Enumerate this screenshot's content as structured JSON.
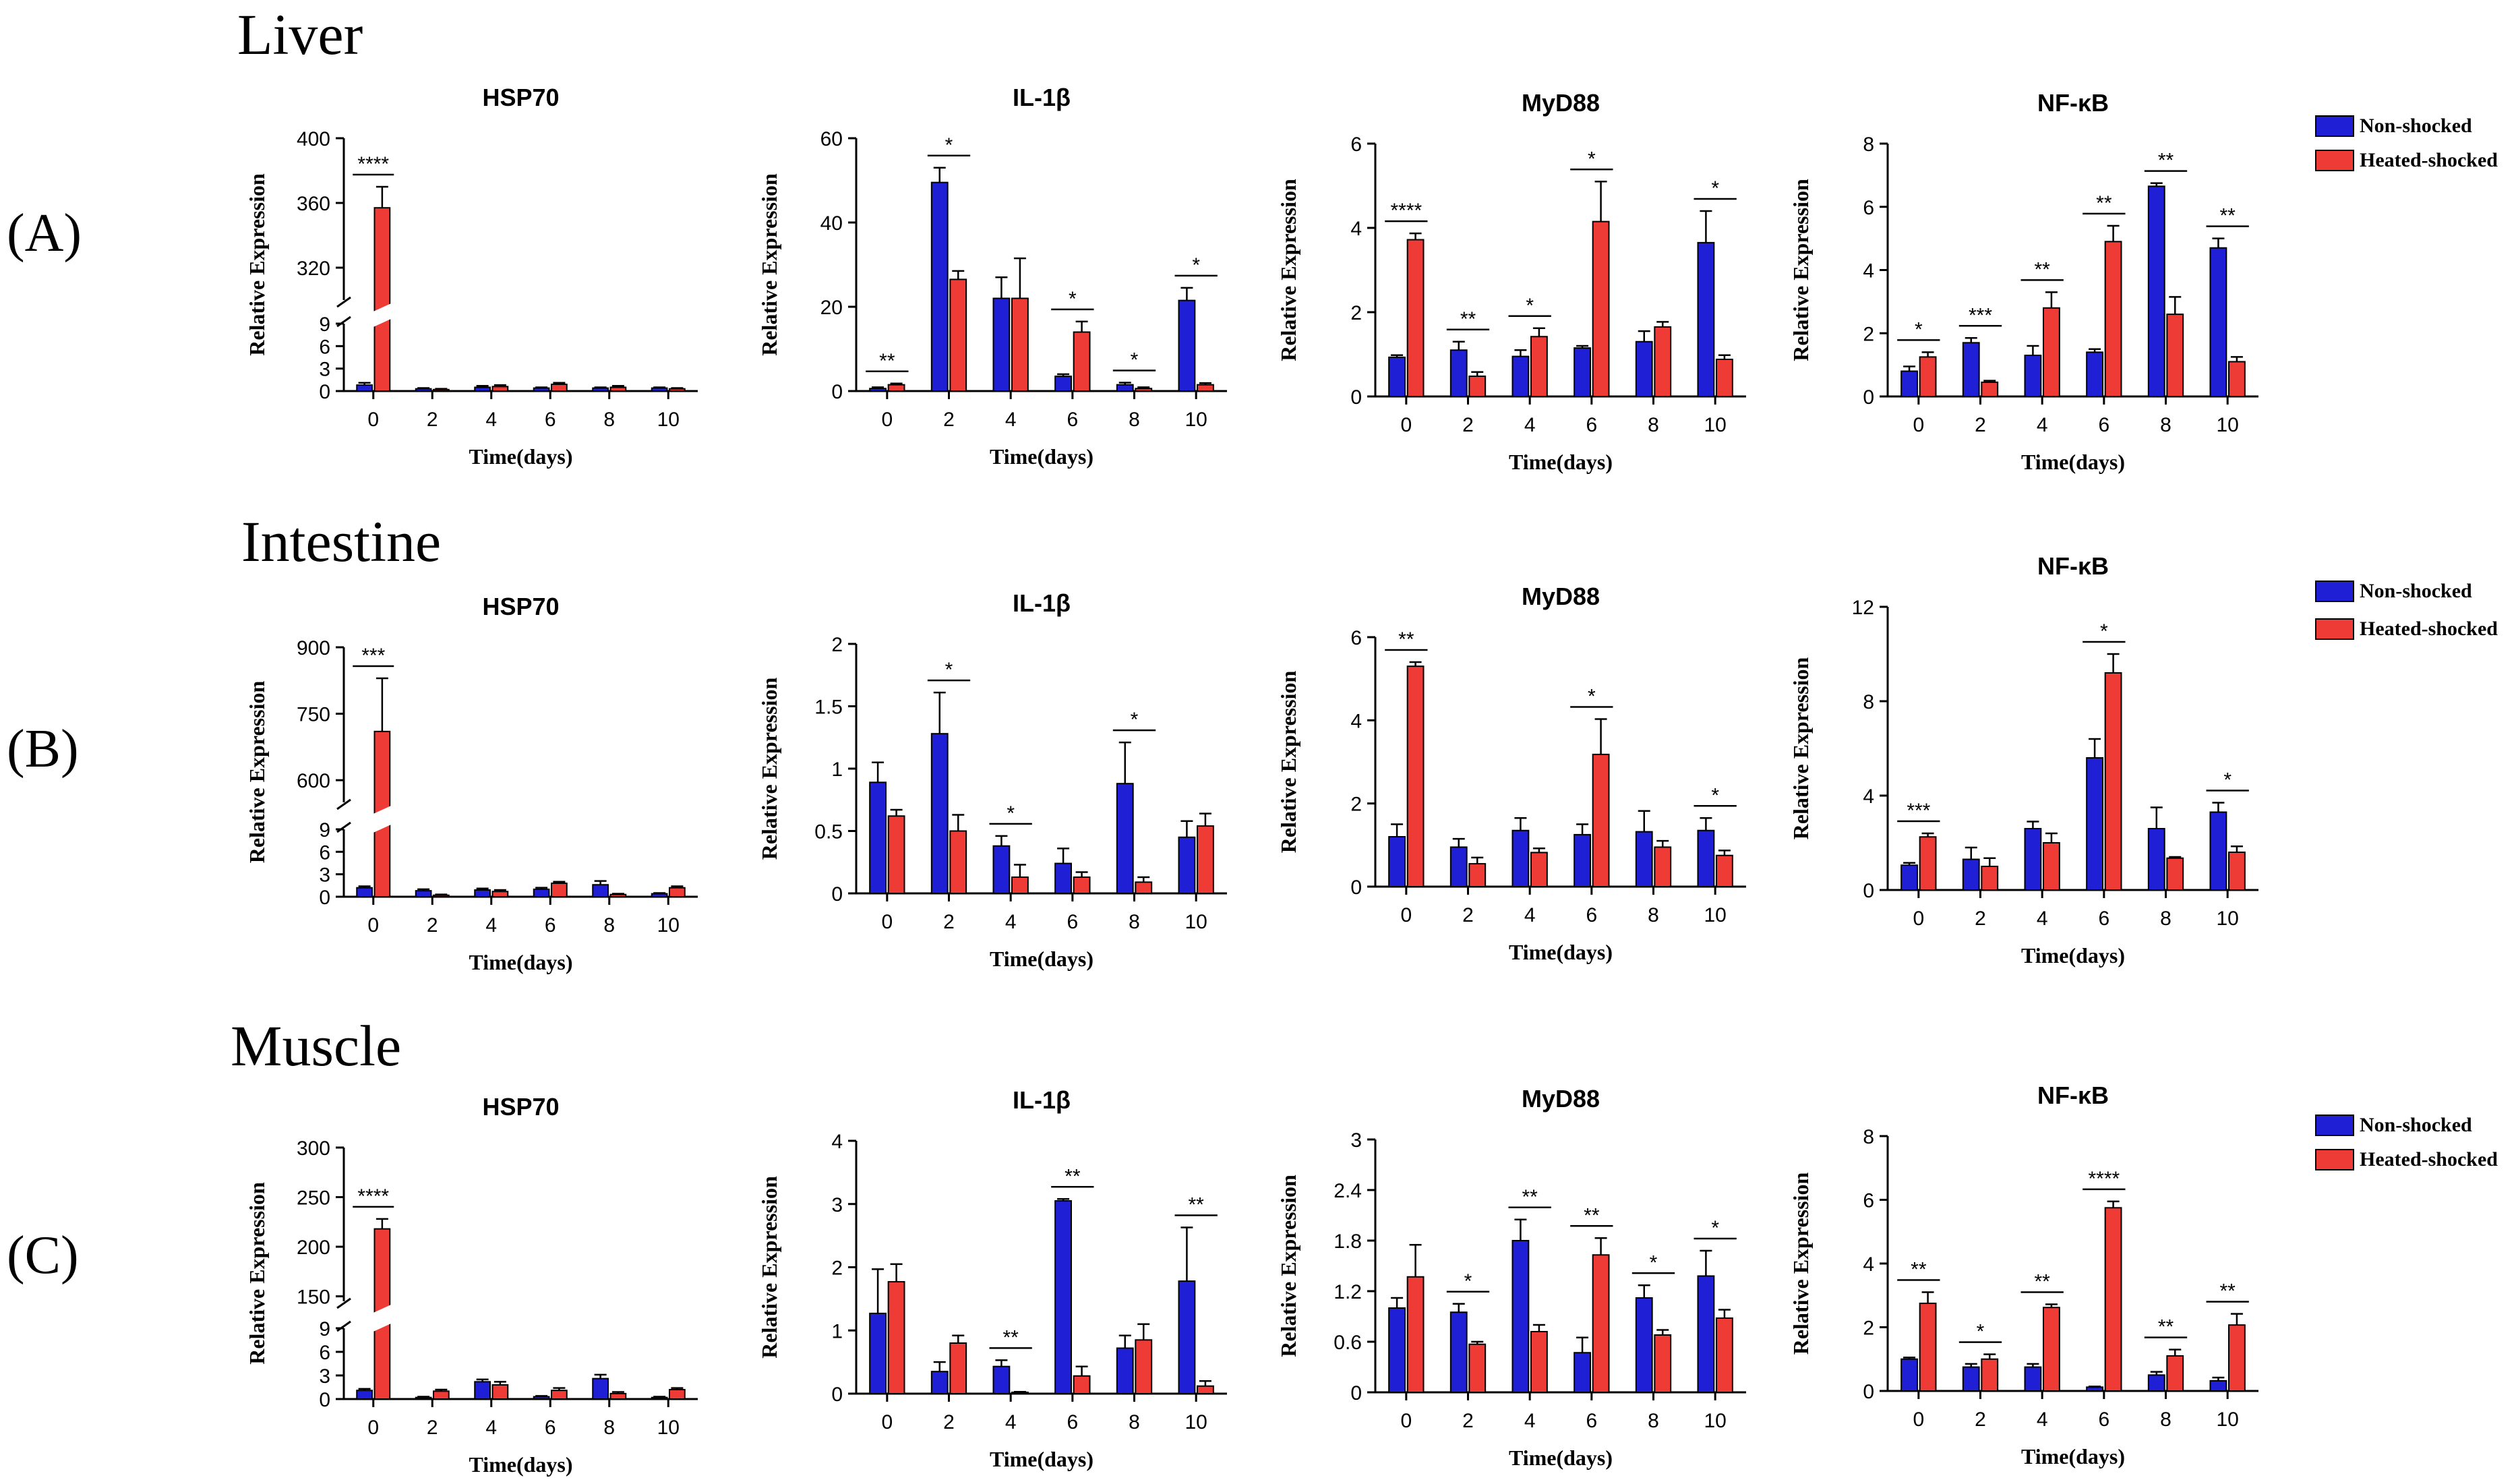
{
  "figure": {
    "xlabel": "Time(days)",
    "ylabel": "Relative Expression",
    "legend": {
      "non": "Non-shocked",
      "heat": "Heated-shocked"
    },
    "colors": {
      "non": "#1f1fd6",
      "heat": "#ef3b36",
      "axis": "#000000"
    }
  },
  "rows": [
    {
      "label": "(A)",
      "title": "Liver"
    },
    {
      "label": "(B)",
      "title": "Intestine"
    },
    {
      "label": "(C)",
      "title": "Muscle"
    }
  ],
  "chart_data": [
    {
      "type": "bar",
      "row": 0,
      "title": "HSP70",
      "categories": [
        "0",
        "2",
        "4",
        "6",
        "8",
        "10"
      ],
      "series": [
        {
          "name": "Non-shocked",
          "values": [
            0.8,
            0.3,
            0.5,
            0.4,
            0.4,
            0.4
          ],
          "errors": [
            0.3,
            0.1,
            0.2,
            0.1,
            0.1,
            0.1
          ]
        },
        {
          "name": "Heated-shocked",
          "values": [
            357,
            0.2,
            0.6,
            0.9,
            0.5,
            0.3
          ],
          "errors": [
            13,
            0.1,
            0.2,
            0.2,
            0.2,
            0.1
          ]
        }
      ],
      "ylim": [
        0,
        400
      ],
      "ybreak": {
        "low": [
          0,
          9
        ],
        "high": [
          300,
          400
        ]
      },
      "yticks_low": [
        0,
        3,
        6,
        9
      ],
      "yticks_high": [
        320,
        360,
        400
      ],
      "significance": [
        {
          "category": "0",
          "label": "****"
        }
      ]
    },
    {
      "type": "bar",
      "row": 0,
      "title": "IL-1β",
      "categories": [
        "0",
        "2",
        "4",
        "6",
        "8",
        "10"
      ],
      "series": [
        {
          "name": "Non-shocked",
          "values": [
            0.6,
            49.5,
            22,
            3.5,
            1.5,
            21.5
          ],
          "errors": [
            0.3,
            3.5,
            5,
            0.5,
            0.5,
            3
          ]
        },
        {
          "name": "Heated-shocked",
          "values": [
            1.5,
            26.5,
            22,
            14,
            0.6,
            1.5
          ],
          "errors": [
            0.3,
            2,
            9.5,
            2.5,
            0.3,
            0.4
          ]
        }
      ],
      "ylim": [
        0,
        60
      ],
      "yticks": [
        0,
        20,
        40,
        60
      ],
      "significance": [
        {
          "category": "0",
          "label": "**"
        },
        {
          "category": "2",
          "label": "*"
        },
        {
          "category": "6",
          "label": "*"
        },
        {
          "category": "8",
          "label": "*"
        },
        {
          "category": "10",
          "label": "*"
        }
      ]
    },
    {
      "type": "bar",
      "row": 0,
      "title": "MyD88",
      "categories": [
        "0",
        "2",
        "4",
        "6",
        "8",
        "10"
      ],
      "series": [
        {
          "name": "Non-shocked",
          "values": [
            0.93,
            1.1,
            0.95,
            1.15,
            1.3,
            3.65
          ],
          "errors": [
            0.05,
            0.2,
            0.15,
            0.05,
            0.25,
            0.75
          ]
        },
        {
          "name": "Heated-shocked",
          "values": [
            3.72,
            0.48,
            1.42,
            4.15,
            1.65,
            0.88
          ],
          "errors": [
            0.15,
            0.1,
            0.2,
            0.95,
            0.12,
            0.1
          ]
        }
      ],
      "ylim": [
        0,
        6
      ],
      "yticks": [
        0,
        2,
        4,
        6
      ],
      "significance": [
        {
          "category": "0",
          "label": "****"
        },
        {
          "category": "2",
          "label": "**"
        },
        {
          "category": "4",
          "label": "*"
        },
        {
          "category": "6",
          "label": "*"
        },
        {
          "category": "10",
          "label": "*"
        }
      ]
    },
    {
      "type": "bar",
      "row": 0,
      "title": "NF-κB",
      "categories": [
        "0",
        "2",
        "4",
        "6",
        "8",
        "10"
      ],
      "series": [
        {
          "name": "Non-shocked",
          "values": [
            0.8,
            1.7,
            1.3,
            1.4,
            6.65,
            4.7
          ],
          "errors": [
            0.15,
            0.15,
            0.3,
            0.1,
            0.1,
            0.3
          ]
        },
        {
          "name": "Heated-shocked",
          "values": [
            1.25,
            0.45,
            2.8,
            4.9,
            2.6,
            1.1
          ],
          "errors": [
            0.15,
            0.05,
            0.5,
            0.5,
            0.55,
            0.15
          ]
        }
      ],
      "ylim": [
        0,
        8
      ],
      "yticks": [
        0,
        2,
        4,
        6,
        8
      ],
      "significance": [
        {
          "category": "0",
          "label": "*"
        },
        {
          "category": "2",
          "label": "***"
        },
        {
          "category": "4",
          "label": "**"
        },
        {
          "category": "6",
          "label": "**"
        },
        {
          "category": "8",
          "label": "**"
        },
        {
          "category": "10",
          "label": "**"
        }
      ]
    },
    {
      "type": "bar",
      "row": 1,
      "title": "HSP70",
      "categories": [
        "0",
        "2",
        "4",
        "6",
        "8",
        "10"
      ],
      "series": [
        {
          "name": "Non-shocked",
          "values": [
            1.2,
            0.8,
            0.9,
            1.0,
            1.6,
            0.4
          ],
          "errors": [
            0.2,
            0.2,
            0.2,
            0.2,
            0.5,
            0.1
          ]
        },
        {
          "name": "Heated-shocked",
          "values": [
            710,
            0.2,
            0.7,
            1.8,
            0.3,
            1.2
          ],
          "errors": [
            120,
            0.1,
            0.2,
            0.2,
            0.1,
            0.2
          ]
        }
      ],
      "ylim": [
        0,
        900
      ],
      "ybreak": {
        "low": [
          0,
          9
        ],
        "high": [
          550,
          900
        ]
      },
      "yticks_low": [
        0,
        3,
        6,
        9
      ],
      "yticks_high": [
        600,
        750,
        900
      ],
      "significance": [
        {
          "category": "0",
          "label": "***"
        }
      ]
    },
    {
      "type": "bar",
      "row": 1,
      "title": "IL-1β",
      "categories": [
        "0",
        "2",
        "4",
        "6",
        "8",
        "10"
      ],
      "series": [
        {
          "name": "Non-shocked",
          "values": [
            0.89,
            1.28,
            0.38,
            0.24,
            0.88,
            0.45
          ],
          "errors": [
            0.16,
            0.33,
            0.08,
            0.12,
            0.33,
            0.13
          ]
        },
        {
          "name": "Heated-shocked",
          "values": [
            0.62,
            0.5,
            0.13,
            0.13,
            0.09,
            0.54
          ],
          "errors": [
            0.05,
            0.13,
            0.1,
            0.04,
            0.04,
            0.1
          ]
        }
      ],
      "ylim": [
        0,
        2
      ],
      "yticks": [
        0.0,
        0.5,
        1.0,
        1.5,
        2.0
      ],
      "significance": [
        {
          "category": "2",
          "label": "*"
        },
        {
          "category": "4",
          "label": "*"
        },
        {
          "category": "8",
          "label": "*"
        }
      ]
    },
    {
      "type": "bar",
      "row": 1,
      "title": "MyD88",
      "categories": [
        "0",
        "2",
        "4",
        "6",
        "8",
        "10"
      ],
      "series": [
        {
          "name": "Non-shocked",
          "values": [
            1.2,
            0.95,
            1.35,
            1.25,
            1.32,
            1.35
          ],
          "errors": [
            0.3,
            0.2,
            0.3,
            0.25,
            0.5,
            0.3
          ]
        },
        {
          "name": "Heated-shocked",
          "values": [
            5.3,
            0.55,
            0.82,
            3.18,
            0.95,
            0.75
          ],
          "errors": [
            0.1,
            0.15,
            0.1,
            0.85,
            0.15,
            0.12
          ]
        }
      ],
      "ylim": [
        0,
        6
      ],
      "yticks": [
        0,
        2,
        4,
        6
      ],
      "significance": [
        {
          "category": "0",
          "label": "**"
        },
        {
          "category": "6",
          "label": "*"
        },
        {
          "category": "10",
          "label": "*"
        }
      ]
    },
    {
      "type": "bar",
      "row": 1,
      "title": "NF-κB",
      "categories": [
        "0",
        "2",
        "4",
        "6",
        "8",
        "10"
      ],
      "series": [
        {
          "name": "Non-shocked",
          "values": [
            1.05,
            1.3,
            2.6,
            5.6,
            2.6,
            3.3
          ],
          "errors": [
            0.1,
            0.5,
            0.3,
            0.8,
            0.9,
            0.4
          ]
        },
        {
          "name": "Heated-shocked",
          "values": [
            2.25,
            1.0,
            2.0,
            9.2,
            1.35,
            1.6
          ],
          "errors": [
            0.15,
            0.35,
            0.4,
            0.8,
            0.05,
            0.25
          ]
        }
      ],
      "ylim": [
        0,
        12
      ],
      "yticks": [
        0,
        4,
        8,
        12
      ],
      "significance": [
        {
          "category": "0",
          "label": "***"
        },
        {
          "category": "6",
          "label": "*"
        },
        {
          "category": "10",
          "label": "*"
        }
      ]
    },
    {
      "type": "bar",
      "row": 2,
      "title": "HSP70",
      "categories": [
        "0",
        "2",
        "4",
        "6",
        "8",
        "10"
      ],
      "series": [
        {
          "name": "Non-shocked",
          "values": [
            1.1,
            0.2,
            2.2,
            0.3,
            2.6,
            0.2
          ],
          "errors": [
            0.2,
            0.1,
            0.3,
            0.1,
            0.5,
            0.1
          ]
        },
        {
          "name": "Heated-shocked",
          "values": [
            218,
            1.0,
            1.8,
            1.1,
            0.7,
            1.2
          ],
          "errors": [
            10,
            0.2,
            0.4,
            0.3,
            0.2,
            0.2
          ]
        }
      ],
      "ylim": [
        0,
        300
      ],
      "ybreak": {
        "low": [
          0,
          9
        ],
        "high": [
          145,
          300
        ]
      },
      "yticks_low": [
        0,
        3,
        6,
        9
      ],
      "yticks_high": [
        150,
        200,
        250,
        300
      ],
      "significance": [
        {
          "category": "0",
          "label": "****"
        }
      ]
    },
    {
      "type": "bar",
      "row": 2,
      "title": "IL-1β",
      "categories": [
        "0",
        "2",
        "4",
        "6",
        "8",
        "10"
      ],
      "series": [
        {
          "name": "Non-shocked",
          "values": [
            1.27,
            0.35,
            0.43,
            3.05,
            0.72,
            1.78
          ],
          "errors": [
            0.7,
            0.15,
            0.1,
            0.03,
            0.2,
            0.85
          ]
        },
        {
          "name": "Heated-shocked",
          "values": [
            1.77,
            0.8,
            0.02,
            0.28,
            0.85,
            0.12
          ],
          "errors": [
            0.28,
            0.12,
            0.01,
            0.15,
            0.25,
            0.08
          ]
        }
      ],
      "ylim": [
        0,
        4
      ],
      "yticks": [
        0,
        1,
        2,
        3,
        4
      ],
      "significance": [
        {
          "category": "4",
          "label": "**"
        },
        {
          "category": "6",
          "label": "**"
        },
        {
          "category": "10",
          "label": "**"
        }
      ]
    },
    {
      "type": "bar",
      "row": 2,
      "title": "MyD88",
      "categories": [
        "0",
        "2",
        "4",
        "6",
        "8",
        "10"
      ],
      "series": [
        {
          "name": "Non-shocked",
          "values": [
            1.0,
            0.95,
            1.8,
            0.47,
            1.12,
            1.38
          ],
          "errors": [
            0.12,
            0.1,
            0.25,
            0.18,
            0.15,
            0.3
          ]
        },
        {
          "name": "Heated-shocked",
          "values": [
            1.37,
            0.57,
            0.72,
            1.63,
            0.68,
            0.88
          ],
          "errors": [
            0.38,
            0.03,
            0.08,
            0.2,
            0.06,
            0.1
          ]
        }
      ],
      "ylim": [
        0,
        3
      ],
      "yticks": [
        0.0,
        0.6,
        1.2,
        1.8,
        2.4,
        3.0
      ],
      "significance": [
        {
          "category": "2",
          "label": "*"
        },
        {
          "category": "4",
          "label": "**"
        },
        {
          "category": "6",
          "label": "**"
        },
        {
          "category": "8",
          "label": "*"
        },
        {
          "category": "10",
          "label": "*"
        }
      ]
    },
    {
      "type": "bar",
      "row": 2,
      "title": "NF-κB",
      "categories": [
        "0",
        "2",
        "4",
        "6",
        "8",
        "10"
      ],
      "series": [
        {
          "name": "Non-shocked",
          "values": [
            1.0,
            0.75,
            0.75,
            0.12,
            0.5,
            0.32
          ],
          "errors": [
            0.05,
            0.1,
            0.1,
            0.02,
            0.1,
            0.1
          ]
        },
        {
          "name": "Heated-shocked",
          "values": [
            2.75,
            1.0,
            2.62,
            5.75,
            1.1,
            2.07
          ],
          "errors": [
            0.35,
            0.15,
            0.1,
            0.2,
            0.2,
            0.35
          ]
        }
      ],
      "ylim": [
        0,
        8
      ],
      "yticks": [
        0,
        2,
        4,
        6,
        8
      ],
      "significance": [
        {
          "category": "0",
          "label": "**"
        },
        {
          "category": "2",
          "label": "*"
        },
        {
          "category": "4",
          "label": "**"
        },
        {
          "category": "6",
          "label": "****"
        },
        {
          "category": "8",
          "label": "**"
        },
        {
          "category": "10",
          "label": "**"
        }
      ]
    }
  ]
}
